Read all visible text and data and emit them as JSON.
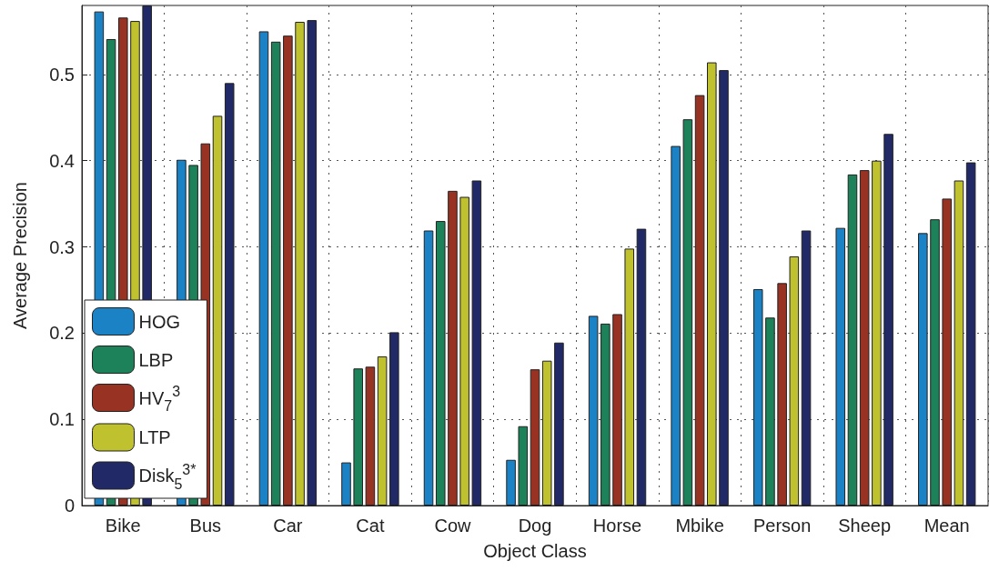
{
  "chart_data": {
    "type": "bar",
    "xlabel": "Object Class",
    "ylabel": "Average Precision",
    "categories": [
      "Bike",
      "Bus",
      "Car",
      "Cat",
      "Cow",
      "Dog",
      "Horse",
      "Mbike",
      "Person",
      "Sheep",
      "Mean"
    ],
    "series": [
      {
        "name": "HOG",
        "color": "#1b82c6",
        "values": [
          0.573,
          0.401,
          0.55,
          0.05,
          0.319,
          0.053,
          0.22,
          0.417,
          0.251,
          0.322,
          0.316
        ]
      },
      {
        "name": "LBP",
        "color": "#1d8159",
        "values": [
          0.541,
          0.395,
          0.538,
          0.159,
          0.33,
          0.092,
          0.211,
          0.448,
          0.218,
          0.384,
          0.332
        ]
      },
      {
        "name": "HV$_{7}$$^{3}$",
        "color": "#983222",
        "values": [
          0.566,
          0.42,
          0.545,
          0.161,
          0.365,
          0.158,
          0.222,
          0.476,
          0.258,
          0.389,
          0.356
        ]
      },
      {
        "name": "LTP",
        "color": "#bfc12f",
        "values": [
          0.562,
          0.452,
          0.561,
          0.173,
          0.358,
          0.168,
          0.298,
          0.514,
          0.289,
          0.4,
          0.377
        ]
      },
      {
        "name": "Disk$_{5}$$^{3*}$",
        "color": "#212966",
        "values": [
          0.58,
          0.49,
          0.563,
          0.201,
          0.377,
          0.189,
          0.321,
          0.505,
          0.319,
          0.431,
          0.398
        ]
      }
    ],
    "ylim": [
      0,
      0.58
    ],
    "yticks": [
      0,
      0.1,
      0.2,
      0.3,
      0.4,
      0.5
    ],
    "grid": true,
    "legend": "bottom left"
  }
}
